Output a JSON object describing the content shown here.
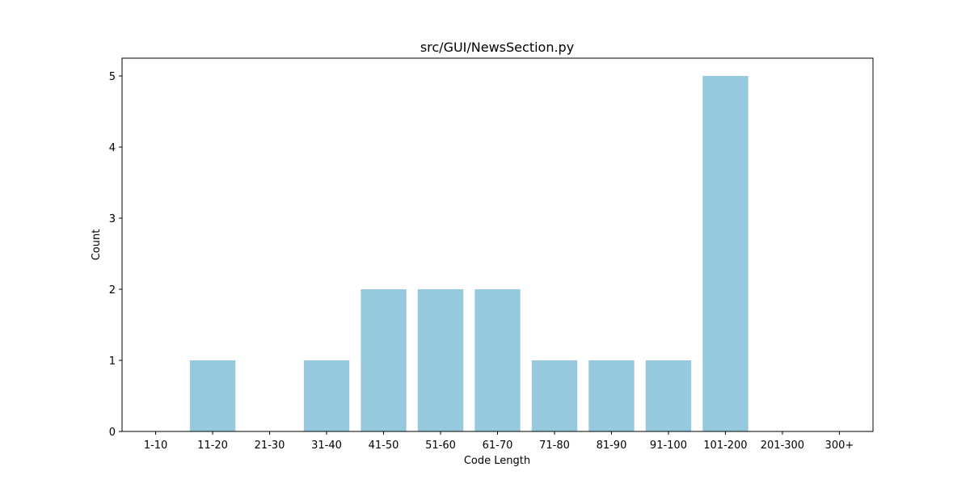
{
  "chart_data": {
    "type": "bar",
    "title": "src/GUI/NewsSection.py",
    "xlabel": "Code Length",
    "ylabel": "Count",
    "categories": [
      "1-10",
      "11-20",
      "21-30",
      "31-40",
      "41-50",
      "51-60",
      "61-70",
      "71-80",
      "81-90",
      "91-100",
      "101-200",
      "201-300",
      "300+"
    ],
    "values": [
      0,
      1,
      0,
      1,
      2,
      2,
      2,
      1,
      1,
      1,
      5,
      0,
      0
    ],
    "ylim": [
      0,
      5.25
    ],
    "yticks": [
      0,
      1,
      2,
      3,
      4,
      5
    ],
    "bar_color": "#96c9dd",
    "grid": false,
    "legend": "none"
  }
}
